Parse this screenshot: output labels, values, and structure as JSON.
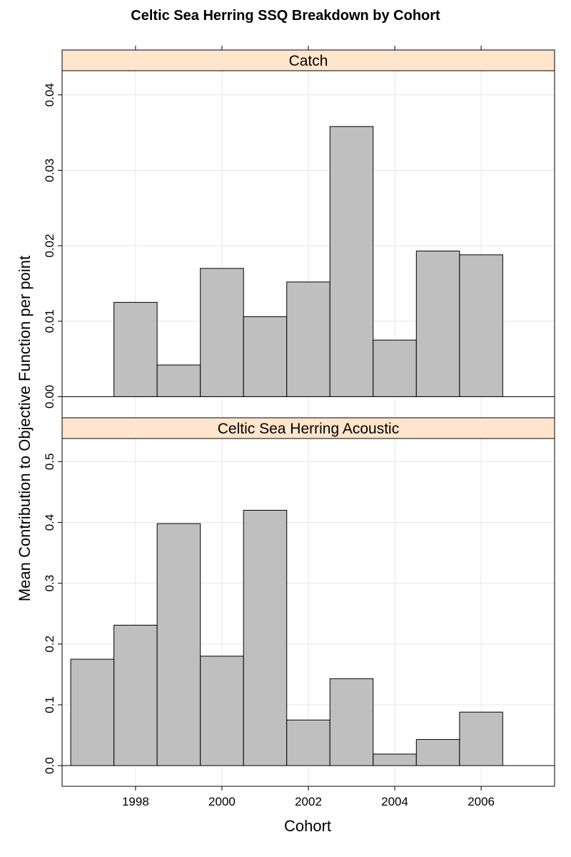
{
  "chart_data": {
    "type": "bar",
    "title": "Celtic Sea Herring SSQ Breakdown by Cohort",
    "xlabel": "Cohort",
    "ylabel": "Mean Contribution to Objective Function per point",
    "xlim": [
      1996.3,
      2007.7
    ],
    "x_ticks": [
      1998,
      2000,
      2002,
      2004,
      2006
    ],
    "bar_color": "#bfbfbf",
    "strip_color": "#ffe5cc",
    "grid": true,
    "panels": [
      {
        "name": "Catch",
        "ylim": [
          -0.0028,
          0.0432
        ],
        "y_ticks": [
          0.0,
          0.01,
          0.02,
          0.03,
          0.04
        ],
        "y_tick_labels": [
          "0.00",
          "0.01",
          "0.02",
          "0.03",
          "0.04"
        ],
        "x": [
          1998,
          1999,
          2000,
          2001,
          2002,
          2003,
          2004,
          2005,
          2006
        ],
        "values": [
          0.0125,
          0.0042,
          0.017,
          0.0106,
          0.0152,
          0.0358,
          0.0075,
          0.0193,
          0.0188
        ]
      },
      {
        "name": "Celtic Sea Herring Acoustic",
        "ylim": [
          -0.034,
          0.538
        ],
        "y_ticks": [
          0.0,
          0.1,
          0.2,
          0.3,
          0.4,
          0.5
        ],
        "y_tick_labels": [
          "0.0",
          "0.1",
          "0.2",
          "0.3",
          "0.4",
          "0.5"
        ],
        "x": [
          1997,
          1998,
          1999,
          2000,
          2001,
          2002,
          2003,
          2004,
          2005,
          2006
        ],
        "values": [
          0.175,
          0.231,
          0.398,
          0.18,
          0.42,
          0.075,
          0.143,
          0.019,
          0.043,
          0.088
        ]
      }
    ]
  }
}
